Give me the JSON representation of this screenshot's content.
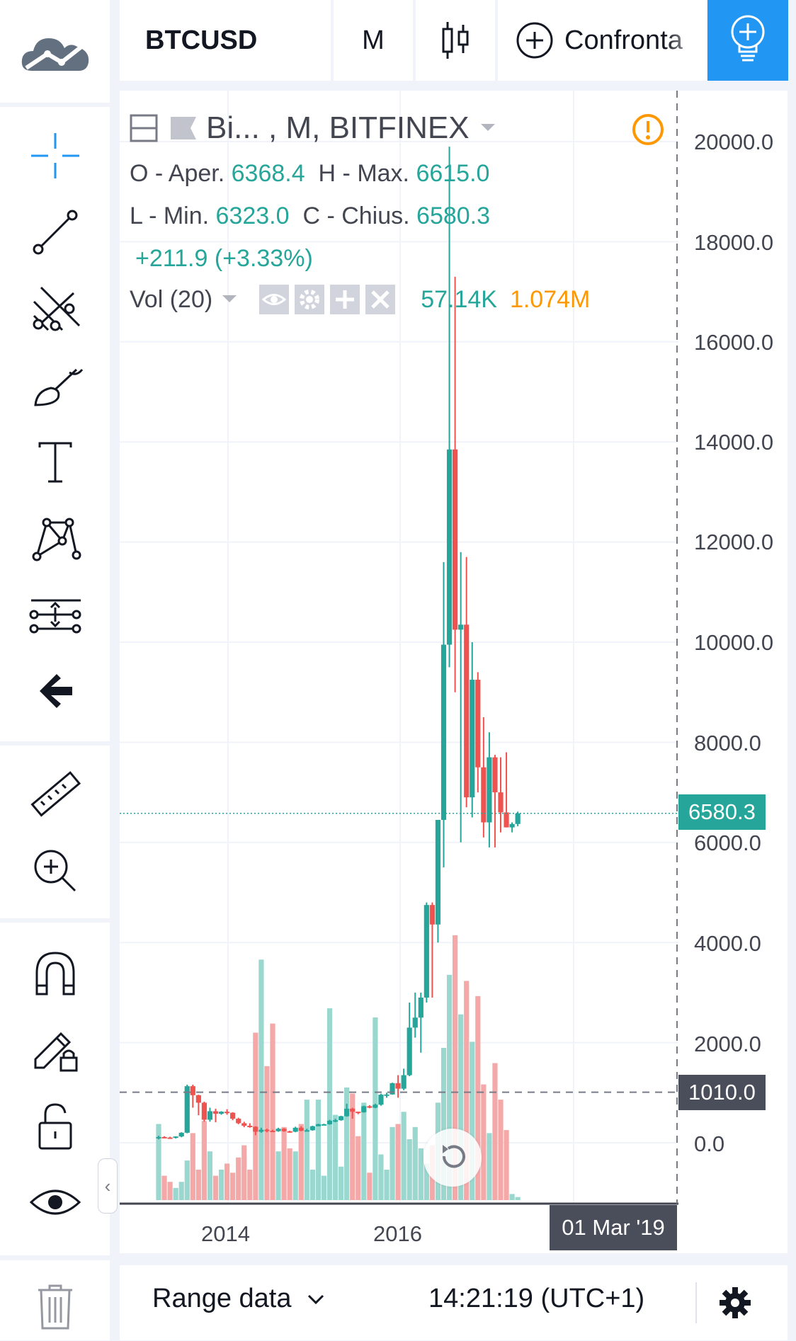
{
  "app": {
    "logo_icon": "tradingview-cloud-logo"
  },
  "toolbar": {
    "symbol": "BTCUSD",
    "interval": "M",
    "chart_type_icon": "candles-icon",
    "compare_label": "Confronta",
    "ideas_icon": "lightbulb-plus-icon",
    "accent": "#2196f3"
  },
  "sidebar": {
    "tools": [
      {
        "name": "crosshair-icon",
        "active": true
      },
      {
        "name": "trendline-icon"
      },
      {
        "name": "pitchfork-icon"
      },
      {
        "name": "brush-icon"
      },
      {
        "name": "text-icon"
      },
      {
        "name": "pattern-icon"
      },
      {
        "name": "prediction-icon"
      },
      {
        "name": "arrow-back-icon"
      },
      {
        "name": "ruler-icon"
      },
      {
        "name": "zoom-in-icon"
      },
      {
        "name": "magnet-icon"
      },
      {
        "name": "lock-drawing-icon"
      },
      {
        "name": "unlock-icon"
      },
      {
        "name": "eye-icon"
      },
      {
        "name": "trash-icon"
      }
    ],
    "collapse_glyph": "‹"
  },
  "legend": {
    "title": "Bi... , M, BITFINEX",
    "o_label": "O - Aper.",
    "o_value": "6368.4",
    "h_label": "H - Max.",
    "h_value": "6615.0",
    "l_label": "L - Min.",
    "l_value": "6323.0",
    "c_label": "C - Chius.",
    "c_value": "6580.3",
    "change": "+211.9 (+3.33%)",
    "vol_label": "Vol (20)",
    "vol_value": "57.14K",
    "vol_ma": "1.074M",
    "warning_icon": "exclamation-circle-icon"
  },
  "chart_data": {
    "type": "candlestick",
    "symbol": "BTCUSD",
    "interval": "M",
    "exchange": "BITFINEX",
    "x_ticks": [
      "2014",
      "2016"
    ],
    "y_ticks": [
      "20000.0",
      "18000.0",
      "16000.0",
      "14000.0",
      "12000.0",
      "10000.0",
      "8000.0",
      "6000.0",
      "4000.0",
      "2000.0",
      "0.0"
    ],
    "ylim": [
      0,
      20000
    ],
    "last_price": "6580.3",
    "crosshair_price": "1010.0",
    "crosshair_date": "01 Mar '19",
    "colors": {
      "up": "#26a69a",
      "down": "#ef5350",
      "vol_up": "#9ad7cf",
      "vol_down": "#f5a8a8"
    },
    "candles": [
      {
        "o": 100,
        "h": 140,
        "l": 70,
        "c": 115
      },
      {
        "o": 115,
        "h": 130,
        "l": 90,
        "c": 105
      },
      {
        "o": 105,
        "h": 120,
        "l": 80,
        "c": 100
      },
      {
        "o": 100,
        "h": 130,
        "l": 85,
        "c": 125
      },
      {
        "o": 125,
        "h": 210,
        "l": 110,
        "c": 200
      },
      {
        "o": 200,
        "h": 1160,
        "l": 190,
        "c": 1130
      },
      {
        "o": 1130,
        "h": 1160,
        "l": 700,
        "c": 950
      },
      {
        "o": 950,
        "h": 960,
        "l": 550,
        "c": 800
      },
      {
        "o": 800,
        "h": 820,
        "l": 420,
        "c": 460
      },
      {
        "o": 460,
        "h": 700,
        "l": 420,
        "c": 630
      },
      {
        "o": 630,
        "h": 680,
        "l": 410,
        "c": 580
      },
      {
        "o": 580,
        "h": 630,
        "l": 560,
        "c": 620
      },
      {
        "o": 620,
        "h": 670,
        "l": 560,
        "c": 600
      },
      {
        "o": 600,
        "h": 610,
        "l": 450,
        "c": 480
      },
      {
        "o": 480,
        "h": 500,
        "l": 370,
        "c": 390
      },
      {
        "o": 390,
        "h": 420,
        "l": 310,
        "c": 340
      },
      {
        "o": 340,
        "h": 390,
        "l": 300,
        "c": 320
      },
      {
        "o": 320,
        "h": 330,
        "l": 150,
        "c": 220
      },
      {
        "o": 220,
        "h": 300,
        "l": 200,
        "c": 260
      },
      {
        "o": 260,
        "h": 280,
        "l": 210,
        "c": 240
      },
      {
        "o": 240,
        "h": 260,
        "l": 220,
        "c": 230
      },
      {
        "o": 230,
        "h": 300,
        "l": 220,
        "c": 280
      },
      {
        "o": 280,
        "h": 290,
        "l": 220,
        "c": 230
      },
      {
        "o": 230,
        "h": 240,
        "l": 200,
        "c": 220
      },
      {
        "o": 220,
        "h": 320,
        "l": 210,
        "c": 300
      },
      {
        "o": 300,
        "h": 330,
        "l": 230,
        "c": 240
      },
      {
        "o": 240,
        "h": 280,
        "l": 230,
        "c": 250
      },
      {
        "o": 250,
        "h": 340,
        "l": 240,
        "c": 330
      },
      {
        "o": 330,
        "h": 380,
        "l": 330,
        "c": 370
      },
      {
        "o": 370,
        "h": 380,
        "l": 360,
        "c": 370
      },
      {
        "o": 370,
        "h": 460,
        "l": 360,
        "c": 440
      },
      {
        "o": 440,
        "h": 480,
        "l": 410,
        "c": 450
      },
      {
        "o": 450,
        "h": 540,
        "l": 440,
        "c": 530
      },
      {
        "o": 530,
        "h": 780,
        "l": 520,
        "c": 680
      },
      {
        "o": 680,
        "h": 700,
        "l": 480,
        "c": 620
      },
      {
        "o": 620,
        "h": 620,
        "l": 570,
        "c": 610
      },
      {
        "o": 610,
        "h": 740,
        "l": 600,
        "c": 730
      },
      {
        "o": 730,
        "h": 750,
        "l": 690,
        "c": 700
      },
      {
        "o": 700,
        "h": 780,
        "l": 690,
        "c": 760
      },
      {
        "o": 760,
        "h": 980,
        "l": 740,
        "c": 960
      },
      {
        "o": 960,
        "h": 1000,
        "l": 900,
        "c": 965
      },
      {
        "o": 965,
        "h": 1200,
        "l": 960,
        "c": 1190
      },
      {
        "o": 1190,
        "h": 1350,
        "l": 900,
        "c": 1080
      },
      {
        "o": 1080,
        "h": 1480,
        "l": 1050,
        "c": 1350
      },
      {
        "o": 1350,
        "h": 2800,
        "l": 1330,
        "c": 2300
      },
      {
        "o": 2300,
        "h": 3000,
        "l": 2100,
        "c": 2500
      },
      {
        "o": 2500,
        "h": 3000,
        "l": 1800,
        "c": 2900
      },
      {
        "o": 2900,
        "h": 4800,
        "l": 2800,
        "c": 4750
      },
      {
        "o": 4750,
        "h": 4800,
        "l": 2900,
        "c": 4360
      },
      {
        "o": 4360,
        "h": 6400,
        "l": 4000,
        "c": 6450
      },
      {
        "o": 6450,
        "h": 11600,
        "l": 5500,
        "c": 9950
      },
      {
        "o": 9950,
        "h": 19900,
        "l": 9500,
        "c": 13850
      },
      {
        "o": 13850,
        "h": 17300,
        "l": 9000,
        "c": 10250
      },
      {
        "o": 10250,
        "h": 11800,
        "l": 6000,
        "c": 10350
      },
      {
        "o": 10350,
        "h": 11700,
        "l": 6700,
        "c": 6900
      },
      {
        "o": 6900,
        "h": 10000,
        "l": 6500,
        "c": 9250
      },
      {
        "o": 9250,
        "h": 9400,
        "l": 7000,
        "c": 7500
      },
      {
        "o": 7500,
        "h": 8500,
        "l": 6100,
        "c": 6400
      },
      {
        "o": 6400,
        "h": 8200,
        "l": 5900,
        "c": 7700
      },
      {
        "o": 7700,
        "h": 7750,
        "l": 5900,
        "c": 7000
      },
      {
        "o": 7000,
        "h": 7700,
        "l": 6200,
        "c": 6600
      },
      {
        "o": 6600,
        "h": 7800,
        "l": 6300,
        "c": 6300
      },
      {
        "o": 6300,
        "h": 6400,
        "l": 6200,
        "c": 6368
      },
      {
        "o": 6368,
        "h": 6615,
        "l": 6323,
        "c": 6580
      }
    ],
    "volumes": [
      0.25,
      0.08,
      0.06,
      0.04,
      0.06,
      0.13,
      0.22,
      0.1,
      0.26,
      0.16,
      0.08,
      0.1,
      0.12,
      0.09,
      0.14,
      0.18,
      0.1,
      0.55,
      0.79,
      0.44,
      0.58,
      0.16,
      0.24,
      0.17,
      0.16,
      0.25,
      0.33,
      0.1,
      0.33,
      0.08,
      0.63,
      0.28,
      0.11,
      0.37,
      0.35,
      0.21,
      0.32,
      0.09,
      0.6,
      0.15,
      0.1,
      0.24,
      0.25,
      0.29,
      0.2,
      0.24,
      0.17,
      0.12,
      0.18,
      0.32,
      0.5,
      0.74,
      0.87,
      0.61,
      0.72,
      0.52,
      0.67,
      0.38,
      0.22,
      0.45,
      0.33,
      0.23,
      0.02,
      0.01
    ],
    "volume_ma_max": 1.0
  },
  "bottombar": {
    "range_label": "Range data",
    "time": "14:21:19 (UTC+1)",
    "settings_icon": "gear-icon"
  },
  "overlay": {
    "reset_icon": "reset-rotate-icon"
  }
}
